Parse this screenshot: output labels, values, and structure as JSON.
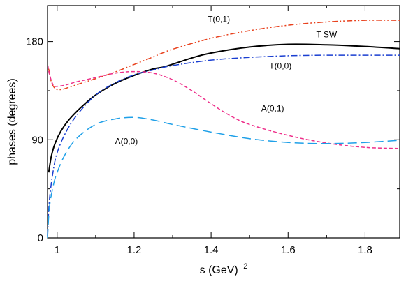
{
  "chart_data": {
    "type": "line",
    "title": "",
    "xlabel": "s (GeV)",
    "xlabel_superscript": "2",
    "ylabel": "phases (degrees)",
    "xlim": [
      0.975,
      1.89
    ],
    "ylim": [
      0,
      213
    ],
    "grid": false,
    "legend": "none",
    "x_ticks": [
      {
        "value": 1.0,
        "label": "1"
      },
      {
        "value": 1.2,
        "label": "1.2"
      },
      {
        "value": 1.4,
        "label": "1.4"
      },
      {
        "value": 1.6,
        "label": "1.6"
      },
      {
        "value": 1.8,
        "label": "1.8"
      }
    ],
    "y_ticks": [
      {
        "value": 0,
        "label": "0"
      },
      {
        "value": 90,
        "label": "90"
      },
      {
        "value": 180,
        "label": "180"
      }
    ],
    "series": [
      {
        "name": "T(0,1)",
        "color": "#e8401c",
        "dash": "dashdotdot",
        "label_at": [
          1.42,
          198
        ],
        "x": [
          0.978,
          0.985,
          0.995,
          1.01,
          1.03,
          1.06,
          1.1,
          1.15,
          1.2,
          1.25,
          1.3,
          1.4,
          1.5,
          1.6,
          1.7,
          1.8,
          1.89
        ],
        "y": [
          155,
          143,
          137,
          136,
          138,
          141.5,
          146,
          152,
          159,
          166,
          173,
          183,
          190,
          195,
          198,
          199.5,
          199.5
        ]
      },
      {
        "name": "T SW",
        "color": "#000000",
        "dash": "solid",
        "label_at": [
          1.7,
          184
        ],
        "x": [
          0.978,
          0.985,
          0.995,
          1.01,
          1.03,
          1.06,
          1.1,
          1.15,
          1.2,
          1.25,
          1.28,
          1.35,
          1.4,
          1.5,
          1.6,
          1.7,
          1.8,
          1.89
        ],
        "y": [
          60,
          75,
          87,
          98,
          108,
          119,
          131,
          141.5,
          149,
          155,
          157,
          165,
          169.5,
          175,
          177.5,
          177,
          175.5,
          173.5
        ]
      },
      {
        "name": "T(0,0)",
        "color": "#1a3fd1",
        "dash": "dashdot",
        "label_at": [
          1.58,
          155
        ],
        "x": [
          0.975,
          0.98,
          0.99,
          1.0,
          1.02,
          1.05,
          1.1,
          1.15,
          1.2,
          1.25,
          1.3,
          1.4,
          1.5,
          1.6,
          1.7,
          1.8,
          1.89
        ],
        "y": [
          2,
          35,
          62,
          78,
          95,
          112,
          131,
          142,
          149.5,
          154,
          158,
          163,
          165.5,
          167,
          167.5,
          167.5,
          167.5
        ]
      },
      {
        "name": "A(0,1)",
        "color": "#ee2f8a",
        "dash": "dashed",
        "label_at": [
          1.56,
          116
        ],
        "x": [
          0.976,
          0.98,
          0.99,
          1.0,
          1.02,
          1.05,
          1.1,
          1.15,
          1.2,
          1.25,
          1.3,
          1.35,
          1.4,
          1.45,
          1.5,
          1.6,
          1.7,
          1.8,
          1.89
        ],
        "y": [
          158,
          150,
          140,
          139,
          140,
          143,
          147,
          151,
          152.5,
          151,
          145,
          135,
          123,
          112,
          104,
          94,
          87,
          83,
          82
        ]
      },
      {
        "name": "A(0,0)",
        "color": "#1fa0e8",
        "dash": "longdash",
        "label_at": [
          1.18,
          86
        ],
        "x": [
          0.975,
          0.98,
          0.99,
          1.0,
          1.02,
          1.05,
          1.1,
          1.15,
          1.2,
          1.25,
          1.3,
          1.4,
          1.5,
          1.6,
          1.7,
          1.8,
          1.89
        ],
        "y": [
          0,
          28,
          48,
          60,
          76,
          91,
          104,
          109,
          110.5,
          108,
          104,
          97,
          91,
          87.5,
          86.5,
          87.5,
          89.5
        ]
      }
    ]
  }
}
